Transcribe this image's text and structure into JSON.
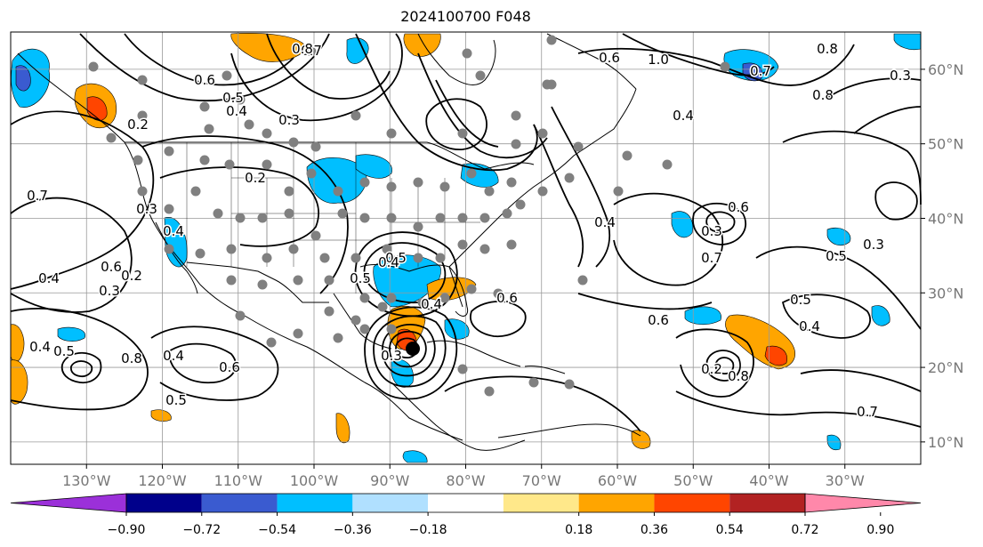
{
  "title": "2024100700 F048",
  "map": {
    "projection": "lat-lon",
    "lon_range": [
      -140,
      -20
    ],
    "lat_range": [
      7,
      65
    ],
    "lon_ticks": [
      "130°W",
      "120°W",
      "110°W",
      "100°W",
      "90°W",
      "80°W",
      "70°W",
      "60°W",
      "50°W",
      "40°W",
      "30°W"
    ],
    "lat_ticks": [
      "60°N",
      "50°N",
      "40°N",
      "30°N",
      "20°N",
      "10°N"
    ],
    "grid": true,
    "contour_labels": [
      "0.7",
      "0.8",
      "0.6",
      "0.5",
      "0.4",
      "0.3",
      "0.2",
      "0.7",
      "1.0",
      "0.6",
      "0.8",
      "0.7",
      "0.3",
      "0.8",
      "0.4",
      "0.2",
      "0.3",
      "0.4",
      "0.5",
      "0.6",
      "0.4",
      "0.2",
      "0.3",
      "0.5",
      "0.4",
      "0.4",
      "0.3",
      "0.6",
      "0.4",
      "0.6",
      "0.3",
      "0.7",
      "0.6",
      "0.5",
      "0.3",
      "0.4",
      "0.5",
      "0.4",
      "0.5",
      "0.4",
      "0.8",
      "0.6",
      "0.5",
      "0.2",
      "0.8",
      "0.7"
    ],
    "storm_marker": "black-dot"
  },
  "colorbar": {
    "labels": [
      "−0.90",
      "−0.72",
      "−0.54",
      "−0.36",
      "−0.18",
      "0.18",
      "0.36",
      "0.54",
      "0.72",
      "0.90"
    ],
    "colors": [
      "#9b30d9",
      "#00008b",
      "#3a5bd0",
      "#00bfff",
      "#b0e0ff",
      "#ffffff",
      "#ffe88a",
      "#ffa500",
      "#ff4500",
      "#b22222",
      "#ff88aa"
    ]
  }
}
